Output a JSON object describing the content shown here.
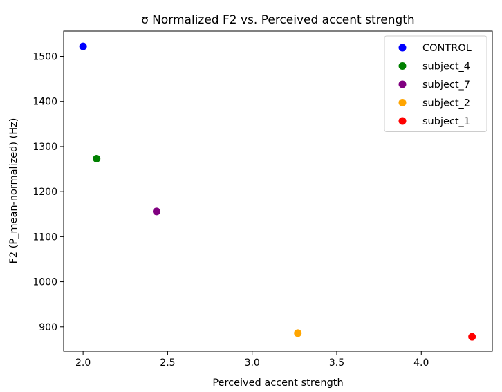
{
  "chart_data": {
    "type": "scatter",
    "title": "ʊ Normalized F2 vs. Perceived accent strength",
    "xlabel": "Perceived accent strength",
    "ylabel": "F2 (P_mean-normalized) (Hz)",
    "xlim": [
      1.885,
      4.42
    ],
    "ylim": [
      846,
      1556
    ],
    "xticks": [
      2.0,
      2.5,
      3.0,
      3.5,
      4.0
    ],
    "xtick_labels": [
      "2.0",
      "2.5",
      "3.0",
      "3.5",
      "4.0"
    ],
    "yticks": [
      900,
      1000,
      1100,
      1200,
      1300,
      1400,
      1500
    ],
    "ytick_labels": [
      "900",
      "1000",
      "1100",
      "1200",
      "1300",
      "1400",
      "1500"
    ],
    "grid": false,
    "legend_position": "top-right",
    "series": [
      {
        "name": "CONTROL",
        "color": "#0000ff",
        "points": [
          {
            "x": 2.0,
            "y": 1522
          }
        ]
      },
      {
        "name": "subject_4",
        "color": "#008000",
        "points": [
          {
            "x": 2.08,
            "y": 1273
          }
        ]
      },
      {
        "name": "subject_7",
        "color": "#800080",
        "points": [
          {
            "x": 2.435,
            "y": 1156
          }
        ]
      },
      {
        "name": "subject_2",
        "color": "#ffa500",
        "points": [
          {
            "x": 3.27,
            "y": 886
          }
        ]
      },
      {
        "name": "subject_1",
        "color": "#ff0000",
        "points": [
          {
            "x": 4.3,
            "y": 878
          }
        ]
      }
    ]
  }
}
